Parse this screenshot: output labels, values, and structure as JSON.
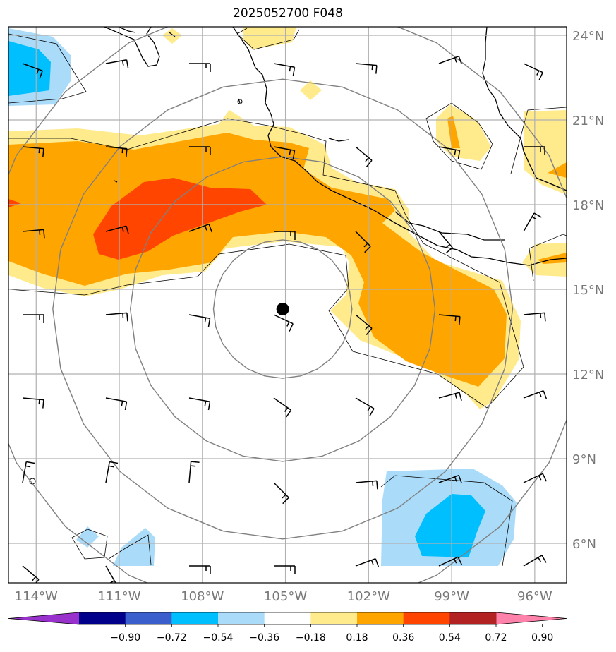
{
  "title": "2025052700 F048",
  "map": {
    "lon_range": [
      -115,
      -94.85
    ],
    "lat_range": [
      4.6,
      24.3
    ],
    "lat_ticks": [
      {
        "value": 24,
        "label": "24°N"
      },
      {
        "value": 21,
        "label": "21°N"
      },
      {
        "value": 18,
        "label": "18°N"
      },
      {
        "value": 15,
        "label": "15°N"
      },
      {
        "value": 12,
        "label": "12°N"
      },
      {
        "value": 9,
        "label": "9°N"
      },
      {
        "value": 6,
        "label": "6°N"
      }
    ],
    "lon_ticks": [
      {
        "value": -114,
        "label": "114°W"
      },
      {
        "value": -111,
        "label": "111°W"
      },
      {
        "value": -108,
        "label": "108°W"
      },
      {
        "value": -105,
        "label": "105°W"
      },
      {
        "value": -102,
        "label": "102°W"
      },
      {
        "value": -99,
        "label": "99°W"
      },
      {
        "value": -96,
        "label": "96°W"
      }
    ],
    "storm_center": {
      "lon": -105.1,
      "lat": 14.3
    },
    "range_rings_deg": [
      2.5,
      5.5,
      8.3,
      11.1
    ],
    "colors": {
      "grid": "#b0b0b0",
      "rings": "#808080",
      "coast": "#000000",
      "pos_018": "#ffea8c",
      "pos_036": "#ffa500",
      "pos_054": "#ff4500",
      "neg_018": "#aadcfa",
      "neg_036": "#00bfff"
    }
  },
  "colorbar": {
    "colors": [
      "#9932cc",
      "#00008b",
      "#3a5fcd",
      "#00bfff",
      "#aadcfa",
      "#ffffff",
      "#ffea8c",
      "#ffa500",
      "#ff4500",
      "#b22222",
      "#ff82ab"
    ],
    "labels": [
      "−0.90",
      "−0.72",
      "−0.54",
      "−0.36",
      "−0.18",
      "0.18",
      "0.36",
      "0.54",
      "0.72",
      "0.90"
    ]
  }
}
